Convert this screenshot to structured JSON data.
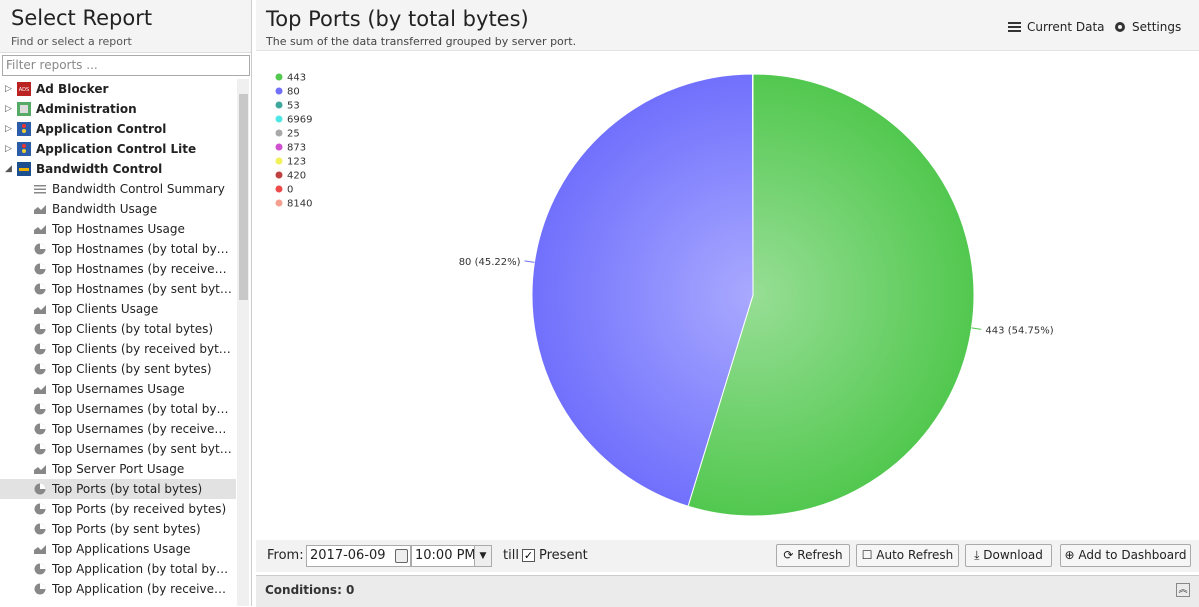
{
  "sidebar": {
    "title": "Select Report",
    "subtitle": "Find or select a report",
    "filter_placeholder": "Filter reports ...",
    "items": [
      {
        "label": "Ad Blocker",
        "level": 0,
        "icon": "ads"
      },
      {
        "label": "Administration",
        "level": 0,
        "icon": "admin"
      },
      {
        "label": "Application Control",
        "level": 0,
        "icon": "app"
      },
      {
        "label": "Application Control Lite",
        "level": 0,
        "icon": "app"
      },
      {
        "label": "Bandwidth Control",
        "level": 0,
        "icon": "bw",
        "expanded": true
      },
      {
        "label": "Bandwidth Control Summary",
        "level": 1,
        "icon": "list"
      },
      {
        "label": "Bandwidth Usage",
        "level": 1,
        "icon": "area"
      },
      {
        "label": "Top Hostnames Usage",
        "level": 1,
        "icon": "area"
      },
      {
        "label": "Top Hostnames (by total bytes)",
        "level": 1,
        "icon": "pie"
      },
      {
        "label": "Top Hostnames (by received bytes)",
        "level": 1,
        "icon": "pie"
      },
      {
        "label": "Top Hostnames (by sent bytes)",
        "level": 1,
        "icon": "pie"
      },
      {
        "label": "Top Clients Usage",
        "level": 1,
        "icon": "area"
      },
      {
        "label": "Top Clients (by total bytes)",
        "level": 1,
        "icon": "pie"
      },
      {
        "label": "Top Clients (by received bytes)",
        "level": 1,
        "icon": "pie"
      },
      {
        "label": "Top Clients (by sent bytes)",
        "level": 1,
        "icon": "pie"
      },
      {
        "label": "Top Usernames Usage",
        "level": 1,
        "icon": "area"
      },
      {
        "label": "Top Usernames (by total bytes)",
        "level": 1,
        "icon": "pie"
      },
      {
        "label": "Top Usernames (by received bytes)",
        "level": 1,
        "icon": "pie"
      },
      {
        "label": "Top Usernames (by sent bytes)",
        "level": 1,
        "icon": "pie"
      },
      {
        "label": "Top Server Port Usage",
        "level": 1,
        "icon": "area"
      },
      {
        "label": "Top Ports (by total bytes)",
        "level": 1,
        "icon": "pie",
        "selected": true
      },
      {
        "label": "Top Ports (by received bytes)",
        "level": 1,
        "icon": "pie"
      },
      {
        "label": "Top Ports (by sent bytes)",
        "level": 1,
        "icon": "pie"
      },
      {
        "label": "Top Applications Usage",
        "level": 1,
        "icon": "area"
      },
      {
        "label": "Top Application (by total bytes)",
        "level": 1,
        "icon": "pie"
      },
      {
        "label": "Top Application (by received bytes)",
        "level": 1,
        "icon": "pie"
      }
    ]
  },
  "header": {
    "title": "Top Ports (by total bytes)",
    "subtitle": "The sum of the data transferred grouped by server port.",
    "buttons": [
      "Current Data",
      "Settings"
    ]
  },
  "chart_data": {
    "type": "pie",
    "categories": [
      "443",
      "80",
      "53",
      "6969",
      "25",
      "873",
      "123",
      "420",
      "0",
      "8140"
    ],
    "values": [
      54.75,
      45.22,
      0.01,
      0.01,
      0.01,
      0,
      0,
      0,
      0,
      0
    ],
    "value_labels": [
      "443 (54.75%)",
      "80 (45.22%)",
      null,
      null,
      null,
      null,
      null,
      null,
      null,
      null
    ],
    "colors": [
      "#52c84f",
      "#7070fd",
      "#3fa89e",
      "#4fe6e6",
      "#a9a9a9",
      "#d050d0",
      "#f4f05a",
      "#c04040",
      "#ef4a4a",
      "#f4a090"
    ],
    "legend": "top-left"
  },
  "toolbar": {
    "from_label": "From:",
    "date": "2017-06-09",
    "time": "10:00 PM",
    "till_label": "till",
    "present_label": "Present",
    "present_checked": true,
    "buttons": [
      "Refresh",
      "Auto Refresh",
      "Download",
      "Add to Dashboard"
    ]
  },
  "conditions": "Conditions: 0"
}
